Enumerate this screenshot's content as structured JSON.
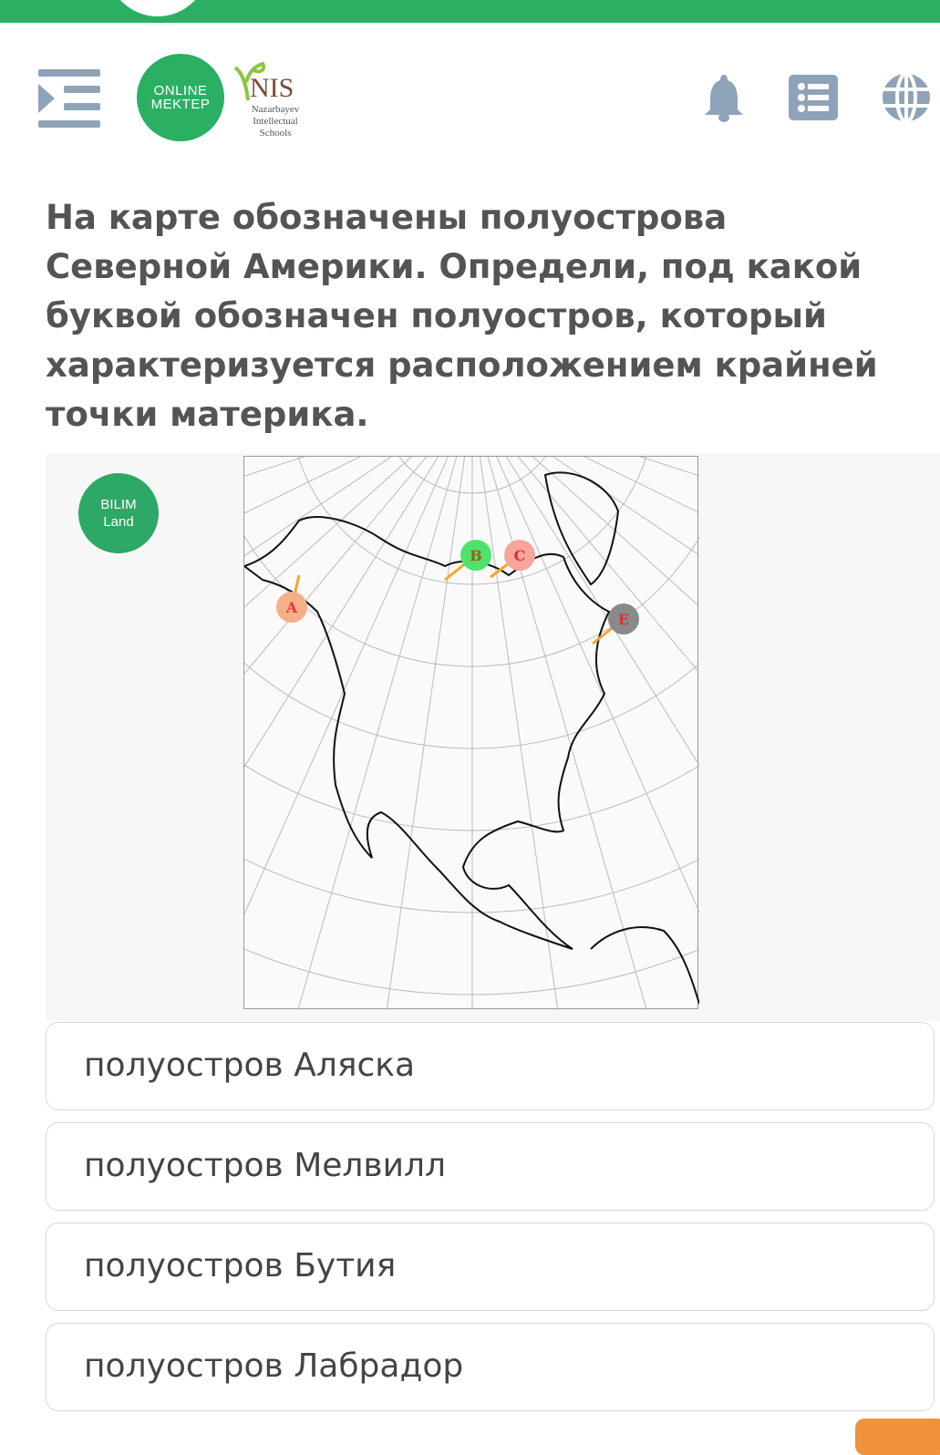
{
  "header": {
    "logo_online_mektep": [
      "ONLINE",
      "MEKTEP"
    ],
    "logo_nis": {
      "title": "NIS",
      "subtitle": [
        "Nazarbayev",
        "Intellectual",
        "Schools"
      ]
    },
    "icons": [
      "menu-icon",
      "bell-icon",
      "list-icon",
      "globe-icon"
    ],
    "accent_color": "#2bb063",
    "icon_color": "#8fa3b8"
  },
  "question": {
    "text": "На карте обозначены полуострова Северной Америки. Определи, под какой буквой обозначен полуостров, который характеризуется расположением крайней точки материка."
  },
  "map": {
    "logo": [
      "BILIM",
      "Land"
    ],
    "markers": [
      {
        "label": "A",
        "color": "#f5b08a",
        "text_color": "#e03a3a"
      },
      {
        "label": "B",
        "color": "#4de36a",
        "text_color": "#a05a1a"
      },
      {
        "label": "C",
        "color": "#f7a49a",
        "text_color": "#d83030"
      },
      {
        "label": "E",
        "color": "#8a8a8a",
        "text_color": "#d83030"
      }
    ]
  },
  "options": [
    {
      "label": "полуостров Аляска"
    },
    {
      "label": "полуостров Мелвилл"
    },
    {
      "label": "полуостров Бутия"
    },
    {
      "label": "полуостров Лабрадор"
    }
  ]
}
